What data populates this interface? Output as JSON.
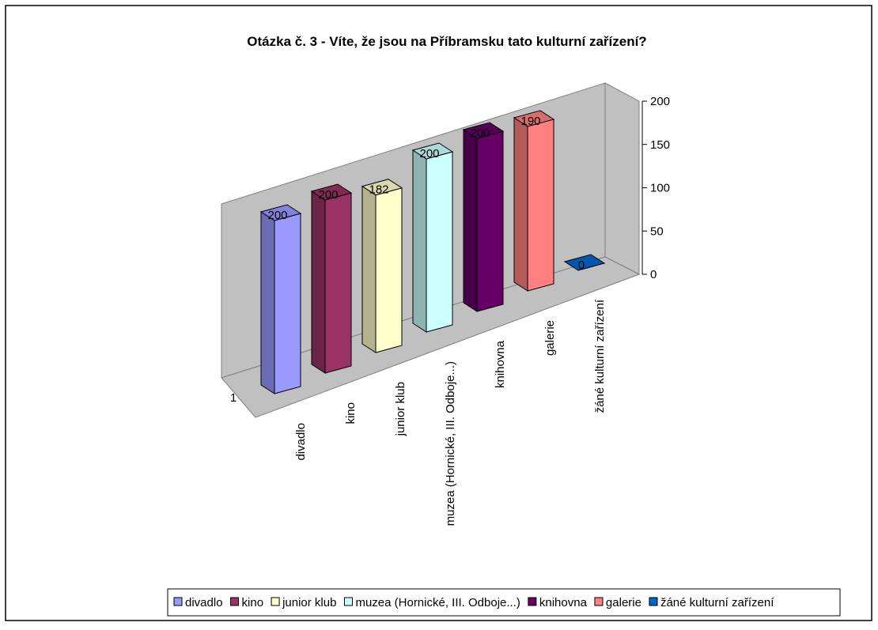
{
  "chart_data": {
    "type": "bar3d",
    "title": "Otázka č. 3 - Víte, že jsou na Příbramsku tato kulturní zařízení?",
    "categories": [
      "1"
    ],
    "series": [
      {
        "name": "divadlo",
        "color": "#9999FF",
        "values": [
          200
        ]
      },
      {
        "name": "kino",
        "color": "#993366",
        "values": [
          200
        ]
      },
      {
        "name": "junior klub",
        "color": "#FFFFCC",
        "values": [
          182
        ]
      },
      {
        "name": "muzea (Hornické, III. Odboje...)",
        "color": "#CCFFFF",
        "values": [
          200
        ]
      },
      {
        "name": "knihovna",
        "color": "#660066",
        "values": [
          200
        ]
      },
      {
        "name": "galerie",
        "color": "#FF8080",
        "values": [
          190
        ]
      },
      {
        "name": "žáné kulturní zařízení",
        "color": "#0066CC",
        "values": [
          0
        ]
      }
    ],
    "ylim": [
      0,
      200
    ],
    "yticks": [
      0,
      50,
      100,
      150,
      200
    ],
    "legend": "bottom"
  }
}
